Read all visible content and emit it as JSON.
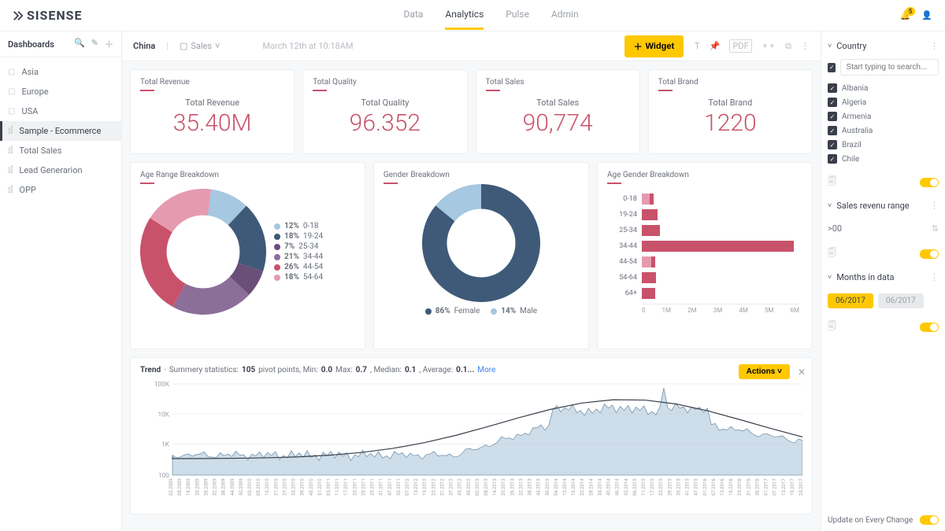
{
  "brand": "SISENSE",
  "topnav": {
    "items": [
      "Data",
      "Analytics",
      "Pulse",
      "Admin"
    ],
    "active": "Analytics"
  },
  "notification_count": "5",
  "leftbar": {
    "title": "Dashboards",
    "items": [
      {
        "label": "Asia",
        "type": "folder"
      },
      {
        "label": "Europe",
        "type": "folder"
      },
      {
        "label": "USA",
        "type": "folder"
      },
      {
        "label": "Sample - Ecommerce",
        "type": "chart",
        "selected": true
      },
      {
        "label": "Total Sales",
        "type": "chart"
      },
      {
        "label": "Lead Generarion",
        "type": "chart"
      },
      {
        "label": "OPP",
        "type": "chart"
      }
    ]
  },
  "toolbar": {
    "breadcrumb": "China",
    "context": "Sales",
    "timestamp": "March 12th at 10:18AM",
    "widget_btn": "Widget"
  },
  "kpis": [
    {
      "title": "Total Revenue",
      "label": "Total Revenue",
      "value": "35.40M",
      "color": "#c9526b"
    },
    {
      "title": "Total Quality",
      "label": "Total Quality",
      "value": "96.352",
      "color": "#c9526b"
    },
    {
      "title": "Total Sales",
      "label": "Total Sales",
      "value": "90,774",
      "color": "#c9526b"
    },
    {
      "title": "Total Brand",
      "label": "Total Brand",
      "value": "1220",
      "color": "#c9526b"
    }
  ],
  "ageDonut": {
    "title": "Age Range Breakdown",
    "slices": [
      {
        "label": "0-18",
        "pct": 12,
        "color": "#a6c8e0"
      },
      {
        "label": "19-24",
        "pct": 18,
        "color": "#3e5a78"
      },
      {
        "label": "25-34",
        "pct": 7,
        "color": "#6a4f78"
      },
      {
        "label": "34-44",
        "pct": 21,
        "color": "#8b6f99"
      },
      {
        "label": "44-54",
        "pct": 26,
        "color": "#c9526b"
      },
      {
        "label": "54-64",
        "pct": 18,
        "color": "#e69ab0"
      }
    ],
    "inner": 0.58
  },
  "genderDonut": {
    "title": "Gender Breakdown",
    "slices": [
      {
        "label": "Female",
        "pct": 86,
        "color": "#3e5a78"
      },
      {
        "label": "Male",
        "pct": 14,
        "color": "#a6c8e0"
      }
    ],
    "inner": 0.58
  },
  "ageGenderBar": {
    "title": "Age Gender Breakdown",
    "xmax": 6,
    "xticks": [
      "0",
      "1M",
      "2M",
      "3M",
      "4M",
      "5M",
      "6M"
    ],
    "rows": [
      {
        "label": "0-18",
        "v1": 0.45,
        "v2": 0.3
      },
      {
        "label": "19-24",
        "v1": 0.6,
        "v2": 0
      },
      {
        "label": "25-34",
        "v1": 0.7,
        "v2": 0
      },
      {
        "label": "34-44",
        "v1": 5.8,
        "v2": 0
      },
      {
        "label": "44-54",
        "v1": 0.5,
        "v2": 0.35
      },
      {
        "label": "54-64",
        "v1": 0.55,
        "v2": 0
      },
      {
        "label": "64+",
        "v1": 0.5,
        "v2": 0
      }
    ],
    "bar_color": "#c9526b",
    "bar_color2": "#e69ab0"
  },
  "trend": {
    "title": "Trend",
    "subtitle": "Summery statistics:",
    "pivot": "105",
    "min": "0.0",
    "max": "0.7",
    "median": "0.1",
    "avg": "0.1...",
    "more": "More",
    "actions_label": "Actions",
    "yticks": [
      "100K",
      "10K",
      "1K",
      "100"
    ],
    "xticks": [
      "02.2009",
      "08.2009",
      "14.2009",
      "20.2009",
      "26.2009",
      "32.2009",
      "38.2009",
      "44.2009",
      "50.2009",
      "03.2010",
      "09.2010",
      "15.2010",
      "21.2010",
      "27.2010",
      "33.2010",
      "39.2010",
      "45.2010",
      "51.2010",
      "05.2011",
      "11.2011",
      "17.2011",
      "23.2011",
      "29.2011",
      "35.2011",
      "41.2011",
      "47.2011",
      "53.2011",
      "07.2012",
      "13.2012",
      "19.2012",
      "25.2012",
      "31.2012",
      "37.2012",
      "43.2012",
      "49.2012",
      "02.2013",
      "08.2013",
      "14.2013",
      "20.2013",
      "26.2013",
      "32.2013",
      "38.2013",
      "44.2013",
      "50.2013",
      "04.2014",
      "10.2014",
      "16.2014",
      "22.2014",
      "28.2014",
      "34.2014",
      "40.2014",
      "46.2014",
      "52.2014",
      "06.2015",
      "11.2015",
      "17.2015",
      "23.2015",
      "29.2015",
      "35.2015",
      "41.2015",
      "47.2015",
      "01.2016",
      "07.2016",
      "13.2016",
      "19.2016",
      "25.2016",
      "31.2016",
      "36.2016",
      "01.2017",
      "07.2017",
      "13.2017",
      "19.2017",
      "25.2017"
    ],
    "area_color": "#b8cfe0",
    "line_color": "#5a7a94",
    "smooth_color": "#3a3f4b"
  },
  "filters": {
    "country": {
      "title": "Country",
      "search_placeholder": "Start typing to search...",
      "items": [
        "Albania",
        "Algeria",
        "Armenia",
        "Australia",
        "Brazil",
        "Chile"
      ]
    },
    "revenue": {
      "title": "Sales revenu range",
      "value": ">00"
    },
    "months": {
      "title": "Months in data",
      "chips": [
        "06/2017",
        "06/2017"
      ]
    },
    "update_label": "Update on Every Change"
  }
}
